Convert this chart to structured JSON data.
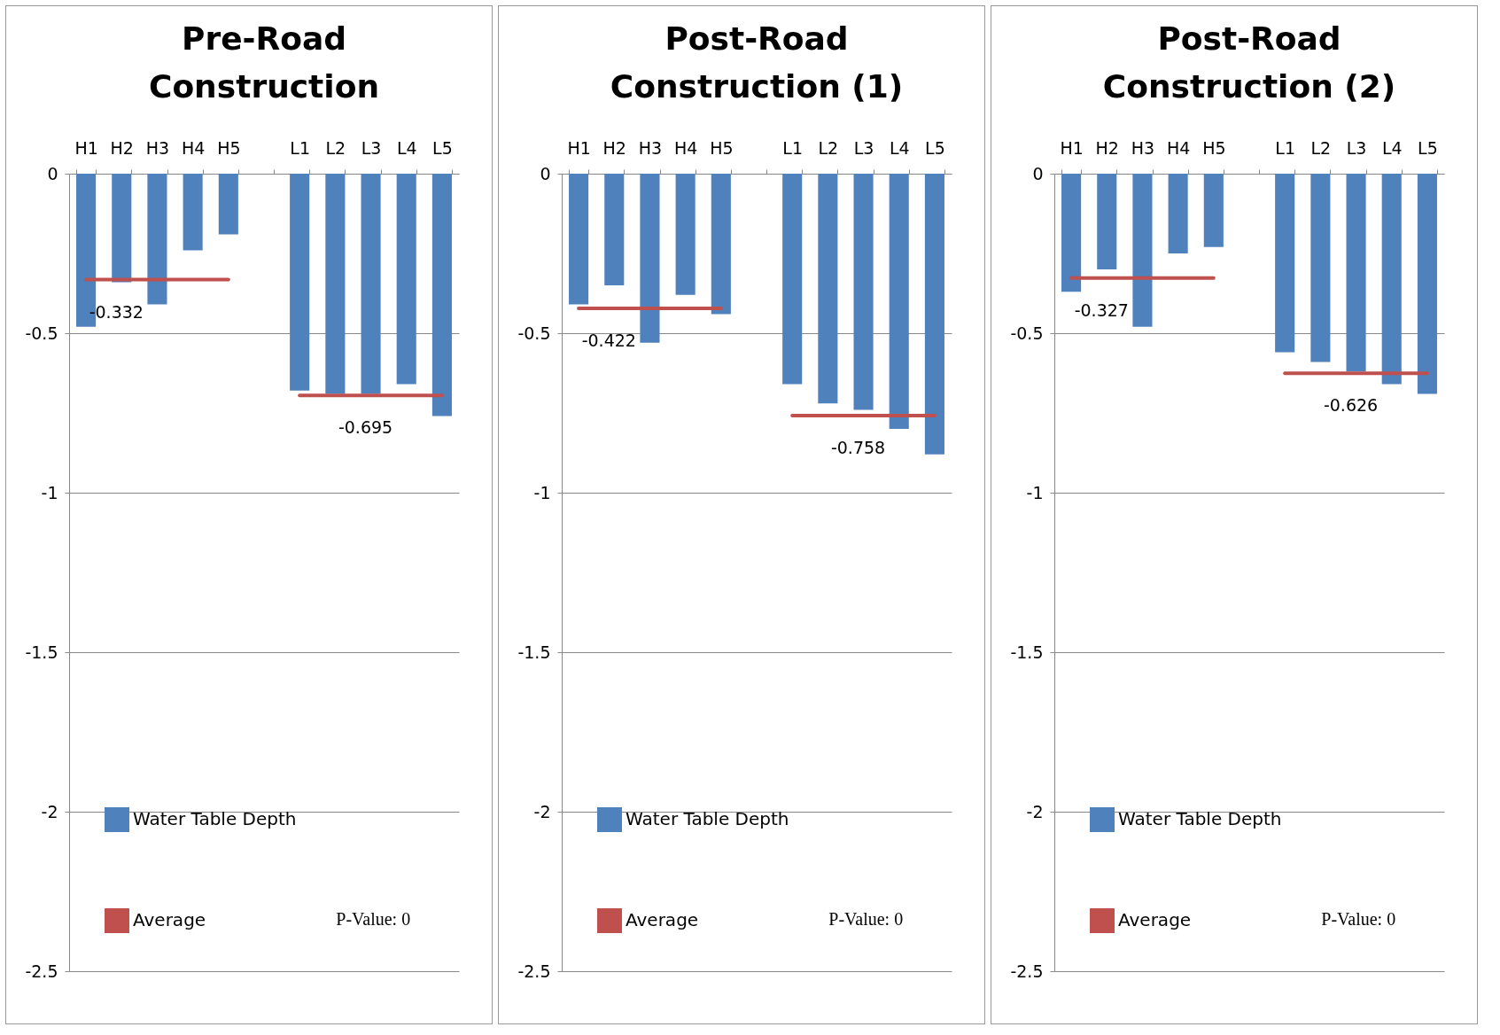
{
  "chart_data": [
    {
      "type": "bar",
      "title": "Pre-Road Construction",
      "categories": [
        "H1",
        "H2",
        "H3",
        "H4",
        "H5",
        null,
        "L1",
        "L2",
        "L3",
        "L4",
        "L5"
      ],
      "series": [
        {
          "name": "Water Table Depth",
          "color": "#4f81bd",
          "values": [
            -0.48,
            -0.34,
            -0.41,
            -0.24,
            -0.19,
            null,
            -0.68,
            -0.69,
            -0.69,
            -0.66,
            -0.76
          ]
        },
        {
          "name": "Average",
          "type": "line",
          "color": "#c0504d",
          "values": [
            -0.332,
            -0.332,
            -0.332,
            -0.332,
            -0.332,
            null,
            -0.695,
            -0.695,
            -0.695,
            -0.695,
            -0.695
          ],
          "value_labels": [
            null,
            "-0.332",
            null,
            null,
            null,
            null,
            null,
            null,
            "-0.695",
            null,
            null
          ]
        }
      ],
      "ylim": [
        -2.5,
        0
      ],
      "yticks": [
        0,
        -0.5,
        -1,
        -1.5,
        -2,
        -2.5
      ],
      "grid": "y",
      "legend": "bottom left",
      "annotations": [
        "P-Value: 0"
      ]
    },
    {
      "type": "bar",
      "title": "Post-Road Construction (1)",
      "categories": [
        "H1",
        "H2",
        "H3",
        "H4",
        "H5",
        null,
        "L1",
        "L2",
        "L3",
        "L4",
        "L5"
      ],
      "series": [
        {
          "name": "Water Table Depth",
          "color": "#4f81bd",
          "values": [
            -0.41,
            -0.35,
            -0.53,
            -0.38,
            -0.44,
            null,
            -0.66,
            -0.72,
            -0.74,
            -0.8,
            -0.88
          ]
        },
        {
          "name": "Average",
          "type": "line",
          "color": "#c0504d",
          "values": [
            -0.422,
            -0.422,
            -0.422,
            -0.422,
            -0.422,
            null,
            -0.758,
            -0.758,
            -0.758,
            -0.758,
            -0.758
          ],
          "value_labels": [
            null,
            "-0.422",
            null,
            null,
            null,
            null,
            null,
            null,
            "-0.758",
            null,
            null
          ]
        }
      ],
      "ylim": [
        -2.5,
        0
      ],
      "yticks": [
        0,
        -0.5,
        -1,
        -1.5,
        -2,
        -2.5
      ],
      "grid": "y",
      "legend": "bottom left",
      "annotations": [
        "P-Value: 0"
      ]
    },
    {
      "type": "bar",
      "title": "Post-Road Construction (2)",
      "categories": [
        "H1",
        "H2",
        "H3",
        "H4",
        "H5",
        null,
        "L1",
        "L2",
        "L3",
        "L4",
        "L5"
      ],
      "series": [
        {
          "name": "Water Table Depth",
          "color": "#4f81bd",
          "values": [
            -0.37,
            -0.3,
            -0.48,
            -0.25,
            -0.23,
            null,
            -0.56,
            -0.59,
            -0.62,
            -0.66,
            -0.69
          ]
        },
        {
          "name": "Average",
          "type": "line",
          "color": "#c0504d",
          "values": [
            -0.327,
            -0.327,
            -0.327,
            -0.327,
            -0.327,
            null,
            -0.626,
            -0.626,
            -0.626,
            -0.626,
            -0.626
          ],
          "value_labels": [
            null,
            "-0.327",
            null,
            null,
            null,
            null,
            null,
            null,
            "-0.626",
            null,
            null
          ]
        }
      ],
      "ylim": [
        -2.5,
        0
      ],
      "yticks": [
        0,
        -0.5,
        -1,
        -1.5,
        -2,
        -2.5
      ],
      "grid": "y",
      "legend": "bottom left",
      "annotations": [
        "P-Value: 0"
      ]
    }
  ]
}
